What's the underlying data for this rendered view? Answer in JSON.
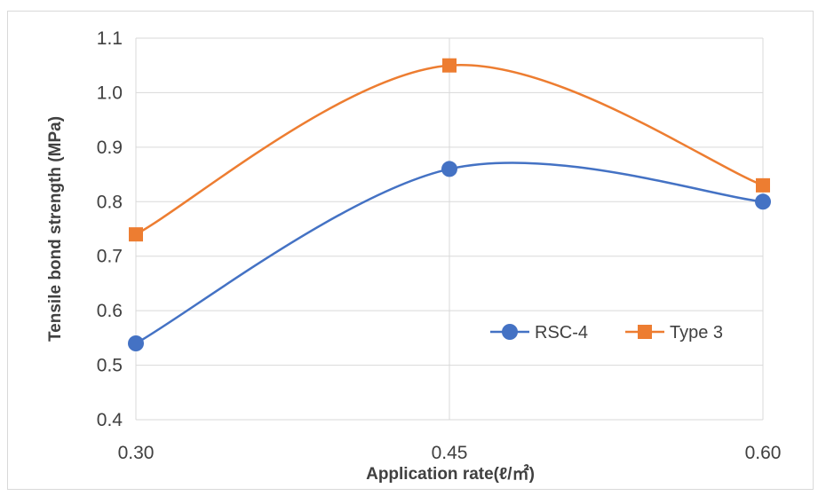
{
  "chart_data": {
    "type": "line",
    "smooth": true,
    "x": [
      "0.30",
      "0.45",
      "0.60"
    ],
    "series": [
      {
        "name": "RSC-4",
        "values": [
          0.54,
          0.86,
          0.8
        ],
        "color": "#4472c4",
        "marker": "circle"
      },
      {
        "name": "Type 3",
        "values": [
          0.74,
          1.05,
          0.83
        ],
        "color": "#ed7d31",
        "marker": "square"
      }
    ],
    "xlabel": "Application rate(ℓ/㎡)",
    "ylabel": "Tensile bond strength (MPa)",
    "ylim": [
      0.4,
      1.1
    ],
    "yticks": [
      0.4,
      0.5,
      0.6,
      0.7,
      0.8,
      0.9,
      1.0,
      1.1
    ],
    "ytick_labels": [
      "0.4",
      "0.5",
      "0.6",
      "0.7",
      "0.8",
      "0.9",
      "1.0",
      "1.1"
    ],
    "grid": true,
    "legend": "inside-right"
  }
}
